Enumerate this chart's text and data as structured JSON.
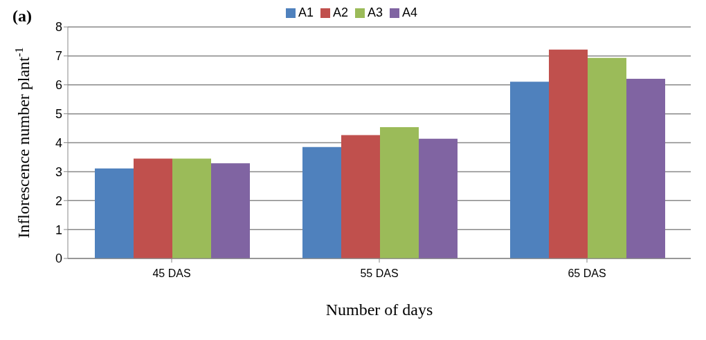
{
  "chart_data": {
    "type": "bar",
    "title": "(a)",
    "xlabel": "Number of days",
    "ylabel": "Inflorescence number plant$^{-1}$",
    "categories": [
      "45 DAS",
      "55 DAS",
      "65 DAS"
    ],
    "series": [
      {
        "name": "A1",
        "color": "#4f81bd",
        "values": [
          3.11,
          3.85,
          6.11
        ]
      },
      {
        "name": "A2",
        "color": "#c0504d",
        "values": [
          3.45,
          4.26,
          7.22
        ]
      },
      {
        "name": "A3",
        "color": "#9bbb59",
        "values": [
          3.45,
          4.54,
          6.93
        ]
      },
      {
        "name": "A4",
        "color": "#8064a2",
        "values": [
          3.29,
          4.14,
          6.21
        ]
      }
    ],
    "ylim": [
      0,
      8
    ],
    "yticks": [
      0,
      1,
      2,
      3,
      4,
      5,
      6,
      7,
      8
    ],
    "grid": "y",
    "legend": "top"
  }
}
